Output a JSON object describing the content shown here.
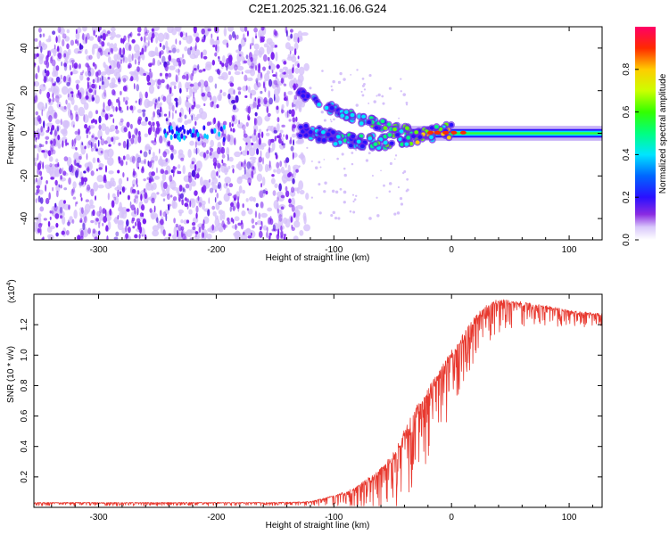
{
  "title": "C2E1.2025.321.16.06.G24",
  "colors": {
    "background": "#ffffff",
    "snr_line": "#e8392f",
    "spectrogram_noise": "#7a1ff0",
    "spectrogram_faint": "#d6c2fa"
  },
  "chart_data": [
    {
      "type": "heatmap",
      "name": "spectrogram",
      "xlabel": "Height of straight line (km)",
      "ylabel": "Frequency (Hz)",
      "xlim": [
        -355,
        128
      ],
      "ylim": [
        -50,
        50
      ],
      "xticks": [
        -300,
        -200,
        -100,
        0,
        100
      ],
      "yticks": [
        -40,
        -20,
        0,
        20,
        40
      ],
      "xtick_labels": [
        "-300",
        "-200",
        "-100",
        "0",
        "100"
      ],
      "ytick_labels": [
        "-40",
        "-20",
        "0",
        "20",
        "40"
      ],
      "colorbar": {
        "label": "Normalized spectral amplitude",
        "range": [
          0,
          1
        ],
        "ticks": [
          0.0,
          0.2,
          0.4,
          0.6,
          0.8
        ],
        "tick_labels": [
          "0.0",
          "0.2",
          "0.4",
          "0.6",
          "0.8"
        ],
        "colormap": "rainbow (white-violet-blue-cyan-green-yellow-red-magenta)"
      },
      "features": {
        "noise_region_x": [
          -355,
          -130
        ],
        "transition_x": [
          -130,
          -30
        ],
        "tone_frequency_hz": 0,
        "upper_branch_start_hz": 19
      }
    },
    {
      "type": "line",
      "name": "snr",
      "xlabel": "Height of straight line (km)",
      "ylabel": "SNR (10 * v/v)",
      "exponent_label": "(x10",
      "exponent_power": "4",
      "exponent_close": ")",
      "xlim": [
        -355,
        128
      ],
      "ylim": [
        0,
        1.4
      ],
      "xticks": [
        -300,
        -200,
        -100,
        0,
        100
      ],
      "yticks": [
        0.2,
        0.4,
        0.6,
        0.8,
        1.0,
        1.2
      ],
      "xtick_labels": [
        "-300",
        "-200",
        "-100",
        "0",
        "100"
      ],
      "ytick_labels": [
        "0.2",
        "0.4",
        "0.6",
        "0.8",
        "1.0",
        "1.2"
      ],
      "trend": {
        "x": [
          -355,
          -300,
          -250,
          -200,
          -150,
          -120,
          -100,
          -80,
          -60,
          -50,
          -40,
          -30,
          -20,
          -10,
          0,
          10,
          20,
          30,
          40,
          60,
          80,
          100,
          128
        ],
        "y": [
          0.03,
          0.03,
          0.03,
          0.03,
          0.03,
          0.035,
          0.07,
          0.12,
          0.22,
          0.3,
          0.45,
          0.6,
          0.72,
          0.85,
          0.98,
          1.1,
          1.22,
          1.3,
          1.34,
          1.33,
          1.31,
          1.28,
          1.26
        ]
      },
      "spread": {
        "x": [
          -355,
          -130,
          -110,
          -90,
          -70,
          -50,
          -30,
          -10,
          10,
          30,
          60,
          100,
          128
        ],
        "y": [
          0.02,
          0.02,
          0.04,
          0.08,
          0.2,
          0.35,
          0.45,
          0.4,
          0.3,
          0.22,
          0.14,
          0.1,
          0.08
        ]
      }
    }
  ]
}
